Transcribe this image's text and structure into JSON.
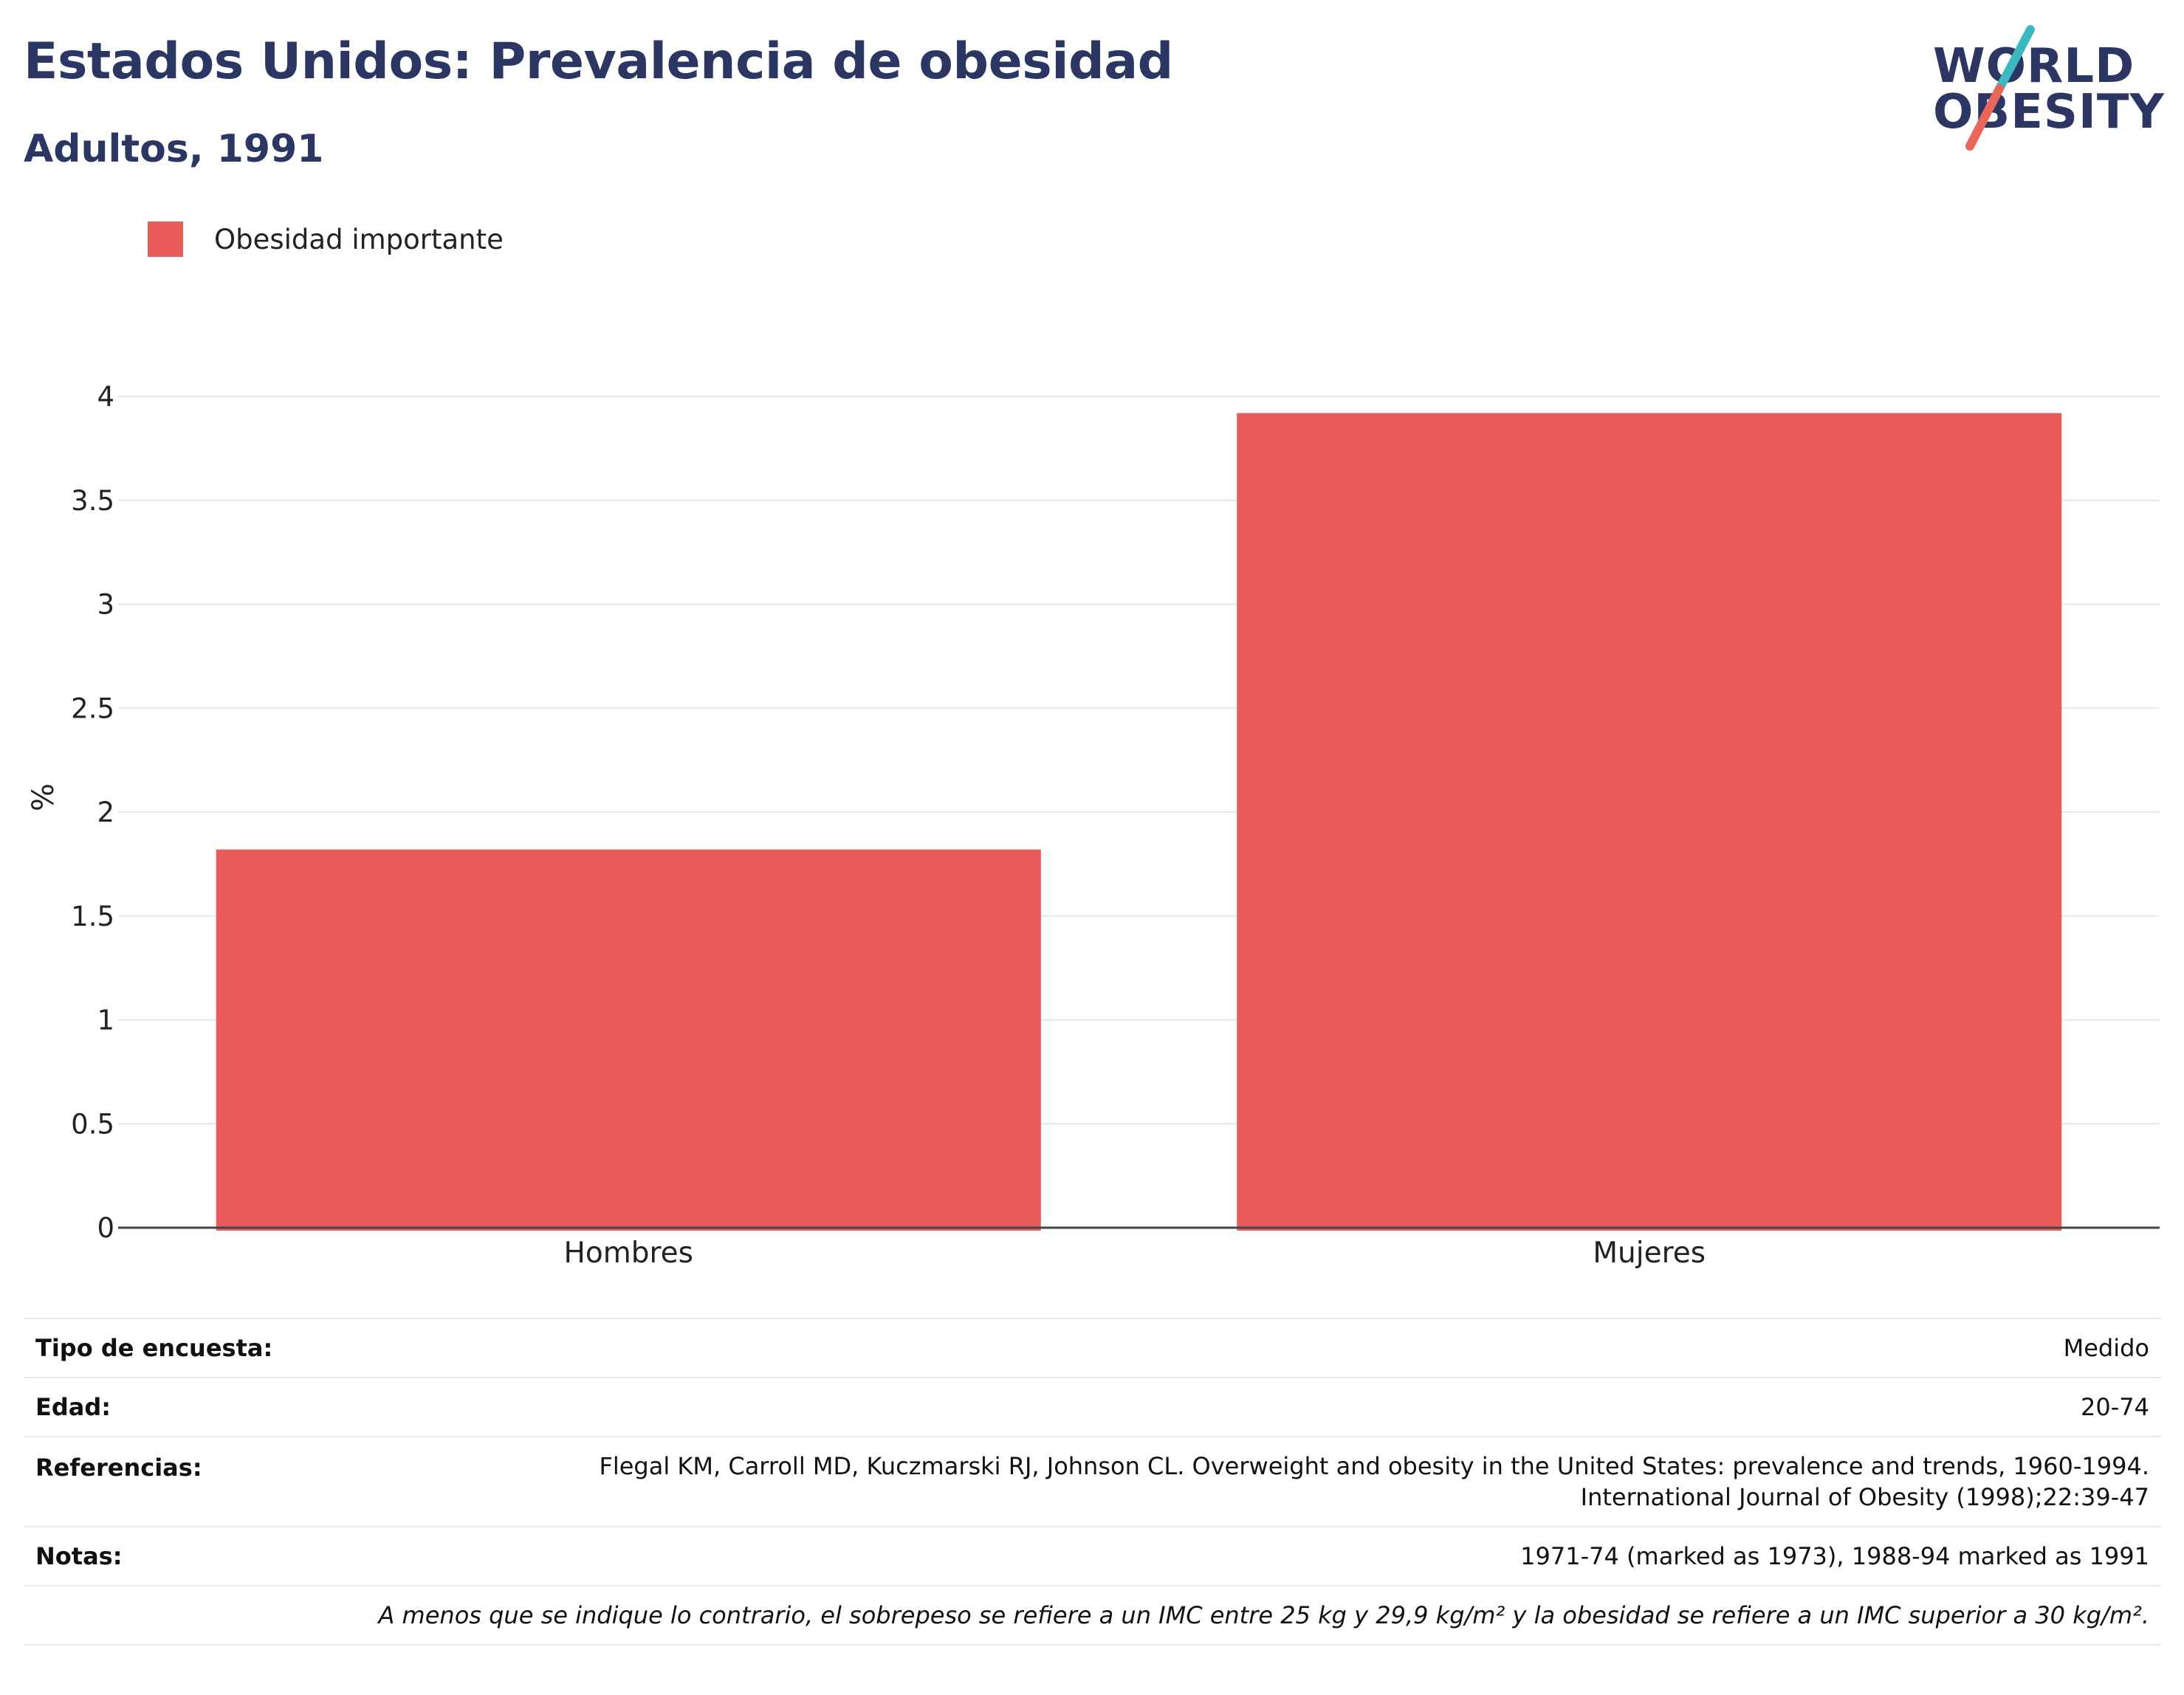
{
  "title": "Estados Unidos: Prevalencia de obesidad",
  "subtitle": "Adultos, 1991",
  "logo": {
    "line1": "WORLD",
    "line2": "OBESITY",
    "colors": {
      "accent_teal": "#3bb8c0",
      "accent_red": "#e8665a"
    }
  },
  "colors": {
    "bar": "#e85c5c",
    "title": "#2b3663",
    "grid": "#e6e7ec",
    "axis": "#444444"
  },
  "legend": {
    "items": [
      {
        "label": "Obesidad importante",
        "color": "#e85c5c"
      }
    ],
    "placement": "top-left"
  },
  "chart_data": {
    "type": "bar",
    "categories": [
      "Hombres",
      "Mujeres"
    ],
    "series": [
      {
        "name": "Obesidad importante",
        "values": [
          1.82,
          3.92
        ]
      }
    ],
    "ylabel": "%",
    "xlabel": "",
    "ylim": [
      0,
      4
    ],
    "yticks": [
      "0",
      "0.5",
      "1",
      "1.5",
      "2",
      "2.5",
      "3",
      "3.5",
      "4"
    ],
    "grid": true
  },
  "info": {
    "tipo_label": "Tipo de encuesta:",
    "tipo_value": "Medido",
    "edad_label": "Edad:",
    "edad_value": "20-74",
    "ref_label": "Referencias:",
    "ref_value_1": "Flegal KM, Carroll MD, Kuczmarski RJ, Johnson CL. Overweight and obesity in the United States: prevalence and trends, 1960-1994.",
    "ref_value_2": "International Journal of Obesity (1998);22:39-47",
    "notas_label": "Notas:",
    "notas_value": "1971-74 (marked as 1973), 1988-94 marked as 1991",
    "footnote": "A menos que se indique lo contrario, el sobrepeso se refiere a un IMC entre 25 kg y 29,9 kg/m² y la obesidad se refiere a un IMC superior a 30 kg/m²."
  }
}
